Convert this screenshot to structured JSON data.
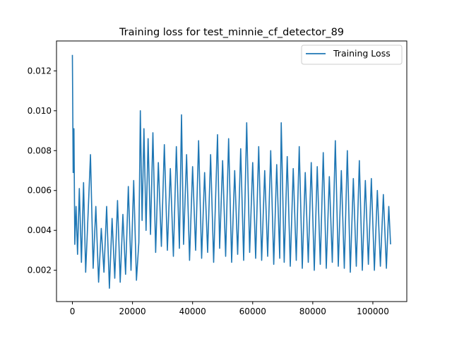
{
  "chart_data": {
    "type": "line",
    "title": "Training loss for test_minnie_cf_detector_89",
    "xlabel": "",
    "ylabel": "",
    "xlim": [
      -5300,
      111300
    ],
    "ylim": [
      0.00043,
      0.0135
    ],
    "x_ticks": [
      0,
      20000,
      40000,
      60000,
      80000,
      100000
    ],
    "x_tick_labels": [
      "0",
      "20000",
      "40000",
      "60000",
      "80000",
      "100000"
    ],
    "y_ticks": [
      0.002,
      0.004,
      0.006,
      0.008,
      0.01,
      0.012
    ],
    "y_tick_labels": [
      "0.002",
      "0.004",
      "0.006",
      "0.008",
      "0.010",
      "0.012"
    ],
    "grid": false,
    "legend": {
      "position": "top-right"
    },
    "series": [
      {
        "name": "Training Loss",
        "color": "#1f77b4",
        "x": [
          0,
          250,
          500,
          800,
          1200,
          1700,
          2300,
          3000,
          3700,
          4400,
          5200,
          6000,
          6900,
          7800,
          8700,
          9600,
          10500,
          11400,
          12300,
          13200,
          14100,
          15000,
          15900,
          16800,
          17700,
          18600,
          19500,
          20400,
          21300,
          22100,
          22600,
          23200,
          23800,
          24500,
          25200,
          26000,
          26800,
          27700,
          28600,
          29600,
          30600,
          31600,
          32600,
          33600,
          34600,
          35600,
          36300,
          37000,
          38000,
          39000,
          40000,
          41000,
          42000,
          43000,
          44000,
          45000,
          46000,
          47000,
          48300,
          49000,
          50000,
          51000,
          52000,
          53000,
          54000,
          55000,
          56000,
          57000,
          58000,
          59000,
          60000,
          61000,
          62000,
          63000,
          64000,
          65000,
          66000,
          67000,
          68000,
          69000,
          69500,
          70500,
          71500,
          72500,
          73500,
          74500,
          75500,
          76500,
          77500,
          78500,
          79500,
          80500,
          81500,
          82500,
          83500,
          84500,
          85500,
          86500,
          87500,
          88500,
          89500,
          90500,
          91500,
          92500,
          93500,
          94500,
          95500,
          96500,
          97500,
          98500,
          99500,
          100500,
          101500,
          102500,
          103500,
          104500,
          105300,
          105900
        ],
        "values": [
          0.0128,
          0.0069,
          0.0091,
          0.0033,
          0.0052,
          0.0028,
          0.0061,
          0.0024,
          0.0064,
          0.0019,
          0.0048,
          0.0078,
          0.0021,
          0.0052,
          0.0014,
          0.0041,
          0.0019,
          0.0052,
          0.0011,
          0.0046,
          0.0016,
          0.0055,
          0.0014,
          0.0048,
          0.0018,
          0.0062,
          0.002,
          0.0065,
          0.0015,
          0.0034,
          0.01,
          0.0045,
          0.0091,
          0.004,
          0.0086,
          0.0038,
          0.0089,
          0.0029,
          0.0074,
          0.0032,
          0.0083,
          0.003,
          0.0071,
          0.0027,
          0.0082,
          0.0031,
          0.0098,
          0.0033,
          0.0078,
          0.0025,
          0.0072,
          0.003,
          0.0085,
          0.0026,
          0.0069,
          0.0029,
          0.0078,
          0.0024,
          0.0088,
          0.0031,
          0.0075,
          0.0027,
          0.0086,
          0.0024,
          0.007,
          0.0028,
          0.0081,
          0.0025,
          0.0094,
          0.0029,
          0.0074,
          0.0026,
          0.0082,
          0.0025,
          0.007,
          0.0027,
          0.008,
          0.0023,
          0.0073,
          0.0026,
          0.0094,
          0.0024,
          0.0077,
          0.0022,
          0.0071,
          0.0025,
          0.0082,
          0.0021,
          0.0069,
          0.0024,
          0.0074,
          0.002,
          0.0072,
          0.0023,
          0.0079,
          0.0021,
          0.0067,
          0.0024,
          0.0085,
          0.0022,
          0.007,
          0.0021,
          0.008,
          0.0019,
          0.0066,
          0.0022,
          0.0075,
          0.002,
          0.0065,
          0.0023,
          0.0066,
          0.002,
          0.006,
          0.0022,
          0.0058,
          0.0021,
          0.0052,
          0.0033
        ]
      }
    ]
  }
}
